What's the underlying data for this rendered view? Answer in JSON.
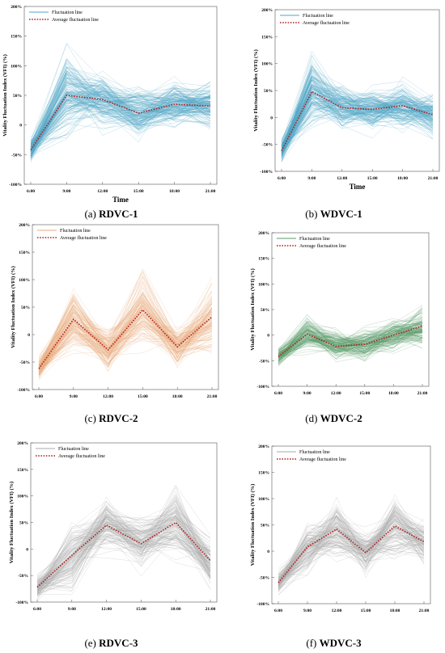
{
  "chart_data": [
    {
      "type": "line",
      "panel_label": "(a)",
      "name": "RDVC-1",
      "color": "#4ea5c4",
      "x": [
        "6:00",
        "9:00",
        "12:00",
        "15:00",
        "18:00",
        "21:00"
      ],
      "series": [
        {
          "name": "Fluctuation    line",
          "lines": 180,
          "spread": [
            12,
            45,
            30,
            28,
            25,
            25
          ]
        },
        {
          "name": "Average fluctuation line",
          "values": [
            -42,
            50,
            43,
            20,
            35,
            32
          ]
        }
      ],
      "xlabel": "Time",
      "ylabel": "Vitality Fluctuation Index    (VFI)     (%)",
      "yticks": [
        "200%",
        "150%",
        "100%",
        "50%",
        "0",
        "-50%",
        "-100%"
      ],
      "ylim": [
        -100,
        200
      ],
      "legend": "top-left"
    },
    {
      "type": "line",
      "panel_label": "(b)",
      "name": "WDVC-1",
      "color": "#4ea5c4",
      "x": [
        "6:00",
        "9:00",
        "12:00",
        "15:00",
        "18:00",
        "21:00"
      ],
      "series": [
        {
          "name": "Fluctuation    line",
          "lines": 180,
          "spread": [
            12,
            40,
            28,
            25,
            30,
            25
          ]
        },
        {
          "name": "Average fluctuation line",
          "values": [
            -62,
            48,
            18,
            15,
            22,
            5
          ]
        }
      ],
      "xlabel": "Time",
      "ylabel": "Vitality Fluctuation Index    (VFI)     (%)",
      "yticks": [
        "200%",
        "150%",
        "100%",
        "50%",
        "0",
        "-50%",
        "-100%"
      ],
      "ylim": [
        -100,
        200
      ],
      "legend": "top-left"
    },
    {
      "type": "line",
      "panel_label": "(c)",
      "name": "RDVC-2",
      "color": "#e8a878",
      "x": [
        "6:00",
        "9:00",
        "12:00",
        "15:00",
        "18:00",
        "21:00"
      ],
      "series": [
        {
          "name": "Fluctuation    line",
          "lines": 150,
          "spread": [
            12,
            35,
            25,
            40,
            22,
            40
          ]
        },
        {
          "name": "Average fluctuation line",
          "values": [
            -62,
            28,
            -28,
            45,
            -22,
            32
          ]
        }
      ],
      "xlabel": "",
      "ylabel": "Vitality Fluctuation Index    (VFI)     (%)",
      "yticks": [
        "200%",
        "150%",
        "100%",
        "50%",
        "0",
        "-50%",
        "-100%"
      ],
      "ylim": [
        -100,
        200
      ],
      "legend": "top-left"
    },
    {
      "type": "line",
      "panel_label": "(d)",
      "name": "WDVC-2",
      "color": "#5a9a6a",
      "x": [
        "6:00",
        "9:00",
        "12:00",
        "15:00",
        "18:00",
        "21:00"
      ],
      "series": [
        {
          "name": "Fluctuation    line",
          "lines": 150,
          "spread": [
            12,
            22,
            20,
            20,
            20,
            25
          ]
        },
        {
          "name": "Average fluctuation line",
          "values": [
            -42,
            2,
            -22,
            -18,
            0,
            18
          ]
        }
      ],
      "xlabel": "",
      "ylabel": "Vitality Fluctuation Index    (VFI)     (%)",
      "yticks": [
        "200%",
        "150%",
        "100%",
        "50%",
        "0",
        "-50%",
        "-100%"
      ],
      "ylim": [
        -100,
        200
      ],
      "legend": "top-left"
    },
    {
      "type": "line",
      "panel_label": "(e)",
      "name": "RDVC-3",
      "color": "#a8a8a8",
      "x": [
        "6:00",
        "9:00",
        "12:00",
        "15:00",
        "18:00",
        "21:00"
      ],
      "series": [
        {
          "name": "Fluctuation    line",
          "lines": 150,
          "spread": [
            15,
            40,
            30,
            30,
            40,
            30
          ]
        },
        {
          "name": "Average fluctuation line",
          "values": [
            -72,
            -12,
            45,
            10,
            50,
            -22
          ]
        }
      ],
      "xlabel": "",
      "ylabel": "Vitality Fluctuation Index    (VFI)     (%)",
      "yticks": [
        "200%",
        "150%",
        "100%",
        "50%",
        "0",
        "-50%",
        "-100%"
      ],
      "ylim": [
        -100,
        200
      ],
      "legend": "top-left"
    },
    {
      "type": "line",
      "panel_label": "(f)",
      "name": "WDVC-3",
      "color": "#a8a8a8",
      "x": [
        "6:00",
        "9:00",
        "12:00",
        "15:00",
        "18:00",
        "21:00"
      ],
      "series": [
        {
          "name": "Fluctuation    line",
          "lines": 150,
          "spread": [
            15,
            30,
            35,
            25,
            40,
            25
          ]
        },
        {
          "name": "Average fluctuation line",
          "values": [
            -60,
            8,
            42,
            -3,
            48,
            18
          ]
        }
      ],
      "xlabel": "",
      "ylabel": "Vitality Fluctuation Index    (VFI)     (%)",
      "yticks": [
        "200%",
        "150%",
        "100%",
        "50%",
        "0",
        "-50%",
        "-100%"
      ],
      "ylim": [
        -100,
        200
      ],
      "legend": "top-left"
    }
  ],
  "avg_line_color": "#b22222"
}
